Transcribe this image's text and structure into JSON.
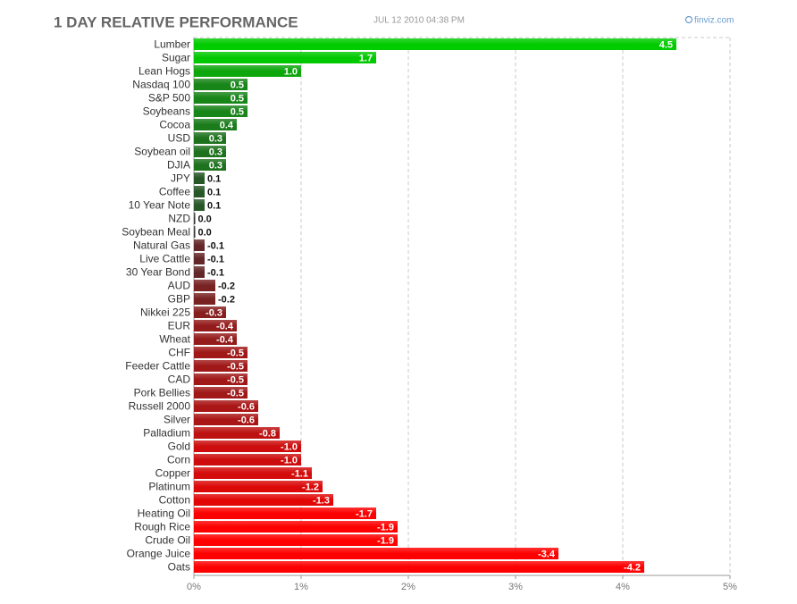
{
  "chart_data": {
    "type": "bar",
    "orientation": "horizontal",
    "title": "1 DAY RELATIVE PERFORMANCE",
    "subtitle": "JUL 12 2010 04:38 PM",
    "source": "finviz.com",
    "categories": [
      "Lumber",
      "Sugar",
      "Lean Hogs",
      "Nasdaq 100",
      "S&P 500",
      "Soybeans",
      "Cocoa",
      "USD",
      "Soybean oil",
      "DJIA",
      "JPY",
      "Coffee",
      "10 Year Note",
      "NZD",
      "Soybean Meal",
      "Natural Gas",
      "Live Cattle",
      "30 Year Bond",
      "AUD",
      "GBP",
      "Nikkei 225",
      "EUR",
      "Wheat",
      "CHF",
      "Feeder Cattle",
      "CAD",
      "Pork Bellies",
      "Russell 2000",
      "Silver",
      "Palladium",
      "Gold",
      "Corn",
      "Copper",
      "Platinum",
      "Cotton",
      "Heating Oil",
      "Rough Rice",
      "Crude Oil",
      "Orange Juice",
      "Oats"
    ],
    "values": [
      4.5,
      1.7,
      1.0,
      0.5,
      0.5,
      0.5,
      0.4,
      0.3,
      0.3,
      0.3,
      0.1,
      0.1,
      0.1,
      0.0,
      0.0,
      -0.1,
      -0.1,
      -0.1,
      -0.2,
      -0.2,
      -0.3,
      -0.4,
      -0.4,
      -0.5,
      -0.5,
      -0.5,
      -0.5,
      -0.6,
      -0.6,
      -0.8,
      -1.0,
      -1.0,
      -1.1,
      -1.2,
      -1.3,
      -1.7,
      -1.9,
      -1.9,
      -3.4,
      -4.2
    ],
    "value_labels": [
      "4.5",
      "1.7",
      "1.0",
      "0.5",
      "0.5",
      "0.5",
      "0.4",
      "0.3",
      "0.3",
      "0.3",
      "0.1",
      "0.1",
      "0.1",
      "0.0",
      "0.0",
      "-0.1",
      "-0.1",
      "-0.1",
      "-0.2",
      "-0.2",
      "-0.3",
      "-0.4",
      "-0.4",
      "-0.5",
      "-0.5",
      "-0.5",
      "-0.5",
      "-0.6",
      "-0.6",
      "-0.8",
      "-1.0",
      "-1.0",
      "-1.1",
      "-1.2",
      "-1.3",
      "-1.7",
      "-1.9",
      "-1.9",
      "-3.4",
      "-4.2"
    ],
    "positive_color": "#00cc00",
    "negative_color": "#ff0000",
    "neutral_color": "#333333",
    "xlim": [
      0,
      5
    ],
    "xticks": [
      {
        "value": 0,
        "label": "0%"
      },
      {
        "value": 1,
        "label": "1%"
      },
      {
        "value": 2,
        "label": "2%"
      },
      {
        "value": 3,
        "label": "3%"
      },
      {
        "value": 4,
        "label": "4%"
      },
      {
        "value": 5,
        "label": "5%"
      }
    ],
    "grid": true
  }
}
